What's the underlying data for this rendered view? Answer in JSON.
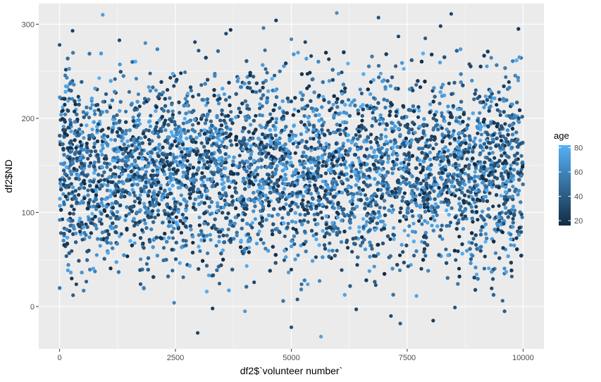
{
  "chart_data": {
    "type": "scatter",
    "title": "",
    "xlabel": "df2$`volunteer number`",
    "ylabel": "df2$ND",
    "xlim": [
      -450,
      10450
    ],
    "ylim": [
      -45,
      322
    ],
    "x_ticks": [
      0,
      2500,
      5000,
      7500,
      10000
    ],
    "x_tick_labels": [
      "0",
      "2500",
      "5000",
      "7500",
      "10000"
    ],
    "y_ticks": [
      0,
      100,
      200,
      300
    ],
    "y_tick_labels": [
      "0",
      "100",
      "200",
      "300"
    ],
    "grid": true,
    "legend": {
      "title": "age",
      "placement": "right",
      "ticks": [
        20,
        40,
        60,
        80
      ],
      "tick_labels": [
        "20",
        "40",
        "60",
        "80"
      ],
      "range": [
        16,
        82
      ],
      "color_low": "#132B43",
      "color_high": "#56B1F7"
    },
    "colors": {
      "panel_background": "#EBEBEB",
      "grid_major": "#FFFFFF",
      "point_low": "#132B43",
      "point_high": "#56B1F7"
    },
    "series": [
      {
        "n_points": 10000,
        "x_range": [
          1,
          10000
        ],
        "y_mean": 145,
        "y_sd": 50,
        "points": [
          {
            "x": 930,
            "y": 310,
            "age": 72
          },
          {
            "x": 5980,
            "y": 312,
            "age": 65
          },
          {
            "x": 8450,
            "y": 311,
            "age": 30
          },
          {
            "x": 6880,
            "y": 307,
            "age": 35
          },
          {
            "x": 4670,
            "y": 304,
            "age": 25
          },
          {
            "x": 8220,
            "y": 298,
            "age": 28
          },
          {
            "x": 9900,
            "y": 295,
            "age": 22
          },
          {
            "x": 4400,
            "y": 296,
            "age": 55
          },
          {
            "x": 3690,
            "y": 294,
            "age": 20
          },
          {
            "x": 3590,
            "y": 290,
            "age": 30
          },
          {
            "x": 280,
            "y": 293,
            "age": 25
          },
          {
            "x": 5000,
            "y": 284,
            "age": 60
          },
          {
            "x": 5300,
            "y": 281,
            "age": 30
          },
          {
            "x": 2920,
            "y": 281,
            "age": 28
          },
          {
            "x": 3000,
            "y": 272,
            "age": 35
          },
          {
            "x": 7310,
            "y": 287,
            "age": 30
          },
          {
            "x": 7890,
            "y": 285,
            "age": 40
          },
          {
            "x": 2980,
            "y": -28,
            "age": 30
          },
          {
            "x": 5000,
            "y": -22,
            "age": 35
          },
          {
            "x": 5640,
            "y": -32,
            "age": 75
          },
          {
            "x": 7150,
            "y": -10,
            "age": 30
          },
          {
            "x": 7350,
            "y": -18,
            "age": 40
          },
          {
            "x": 8060,
            "y": -15,
            "age": 25
          },
          {
            "x": 9600,
            "y": -5,
            "age": 40
          },
          {
            "x": 4000,
            "y": -5,
            "age": 70
          },
          {
            "x": 3300,
            "y": -2,
            "age": 25
          },
          {
            "x": 6400,
            "y": -3,
            "age": 30
          },
          {
            "x": 8530,
            "y": -1,
            "age": 35
          },
          {
            "x": 2470,
            "y": 4,
            "age": 60
          },
          {
            "x": 290,
            "y": 12,
            "age": 40
          },
          {
            "x": 9920,
            "y": 265,
            "age": 70
          },
          {
            "x": 1850,
            "y": 280,
            "age": 65
          },
          {
            "x": 1290,
            "y": 283,
            "age": 30
          },
          {
            "x": 0,
            "y": 278,
            "age": 35
          }
        ]
      }
    ]
  }
}
